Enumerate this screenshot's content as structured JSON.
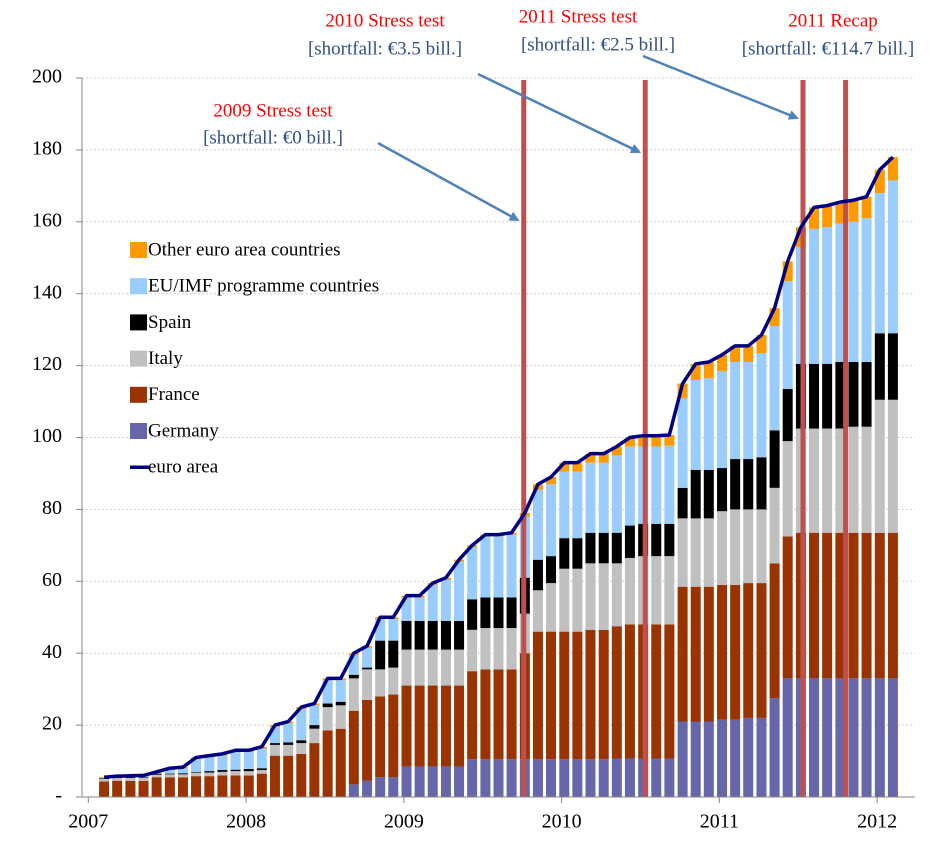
{
  "chart_data": {
    "type": "bar",
    "stacked": true,
    "x": [
      2007.1,
      2007.183,
      2007.267,
      2007.35,
      2007.433,
      2007.517,
      2007.6,
      2007.683,
      2007.767,
      2007.85,
      2007.933,
      2008.017,
      2008.1,
      2008.183,
      2008.267,
      2008.35,
      2008.433,
      2008.517,
      2008.6,
      2008.683,
      2008.767,
      2008.85,
      2008.933,
      2009.017,
      2009.1,
      2009.183,
      2009.267,
      2009.35,
      2009.433,
      2009.517,
      2009.6,
      2009.683,
      2009.767,
      2009.85,
      2009.933,
      2010.017,
      2010.1,
      2010.183,
      2010.267,
      2010.35,
      2010.433,
      2010.517,
      2010.6,
      2010.683,
      2010.767,
      2010.85,
      2010.933,
      2011.017,
      2011.1,
      2011.183,
      2011.267,
      2011.35,
      2011.433,
      2011.517,
      2011.6,
      2011.683,
      2011.767,
      2011.85,
      2011.933,
      2012.017,
      2012.1
    ],
    "series": [
      {
        "name": "Germany",
        "color": "#6667ab",
        "values": [
          0,
          0,
          0,
          0,
          0,
          0,
          0,
          0,
          0,
          0,
          0,
          0,
          0,
          0,
          0,
          0,
          0,
          0,
          0,
          3.5,
          4.5,
          5.5,
          5.5,
          8.5,
          8.5,
          8.5,
          8.5,
          8.5,
          10.5,
          10.5,
          10.5,
          10.5,
          10.5,
          10.5,
          10.5,
          10.5,
          10.5,
          10.5,
          10.5,
          10.7,
          10.7,
          10.7,
          10.7,
          10.7,
          21,
          21,
          21,
          21.5,
          21.5,
          22,
          22,
          27.5,
          33,
          33,
          33,
          33,
          33,
          33,
          33,
          33,
          33
        ]
      },
      {
        "name": "France",
        "color": "#993300",
        "values": [
          4.3,
          4.5,
          4.5,
          4.5,
          5.5,
          5.5,
          5.5,
          5.8,
          5.8,
          6,
          6,
          6,
          6.5,
          11.5,
          11.5,
          12,
          15,
          18.5,
          19,
          20.5,
          22.5,
          22.5,
          23,
          22.5,
          22.5,
          22.5,
          22.5,
          22.5,
          24.5,
          25,
          25,
          25,
          29.5,
          35.5,
          35.5,
          35.5,
          35.5,
          36,
          36,
          36.8,
          37.3,
          37.3,
          37.3,
          37.3,
          37.5,
          37.5,
          37.5,
          37.5,
          37.5,
          37.5,
          37.5,
          37.5,
          39.5,
          40.5,
          40.5,
          40.5,
          40.5,
          40.5,
          40.5,
          40.5,
          40.5
        ]
      },
      {
        "name": "Italy",
        "color": "#c0c0c0",
        "values": [
          0.7,
          0.8,
          0.8,
          0.8,
          0.7,
          0.8,
          0.8,
          1,
          1,
          1,
          1.2,
          1.2,
          1,
          3,
          3,
          3,
          4,
          6.5,
          6.5,
          9,
          8.5,
          7.5,
          7.5,
          10,
          10,
          10,
          10,
          10,
          11.5,
          11.5,
          11.5,
          11.5,
          11,
          11.5,
          13.5,
          17.5,
          17.5,
          18.5,
          18.5,
          17.5,
          18.5,
          19,
          19,
          19,
          19,
          19,
          19,
          20.5,
          21,
          20.5,
          20.5,
          21,
          26.5,
          29,
          29,
          29,
          29,
          29.5,
          29.5,
          37,
          37
        ]
      },
      {
        "name": "Spain",
        "color": "#000000",
        "values": [
          0.2,
          0.2,
          0.2,
          0.2,
          0.3,
          0.2,
          0.3,
          0.2,
          0.4,
          0.5,
          0.4,
          0.6,
          0.5,
          0.5,
          0.7,
          0.8,
          1,
          1,
          1,
          1,
          0.5,
          8,
          7.5,
          8,
          8,
          8,
          8,
          8,
          8.5,
          8.5,
          8.5,
          8.5,
          10,
          8.5,
          7.5,
          8.5,
          8.5,
          8.5,
          8.5,
          8.5,
          9,
          9,
          9,
          9,
          8.5,
          13.5,
          13.5,
          12,
          14,
          14,
          14.5,
          16,
          14.5,
          18,
          18,
          18,
          18.5,
          18,
          18,
          18.5,
          18.5
        ]
      },
      {
        "name": "EU/IMF programme countries",
        "color": "#99ccff",
        "values": [
          0.1,
          0.1,
          0.2,
          0.3,
          0.2,
          1.2,
          1.4,
          3.5,
          3.8,
          4,
          4.9,
          4.7,
          5.5,
          4.5,
          5.3,
          8.7,
          5.5,
          6.5,
          6,
          5.5,
          5.5,
          6,
          6,
          6.5,
          6.5,
          10,
          11.5,
          16.5,
          14.5,
          17,
          17,
          17.5,
          17,
          19.5,
          20,
          18.5,
          18.5,
          19.5,
          19.5,
          21.5,
          22,
          21.5,
          21.5,
          21.7,
          25,
          25,
          25.5,
          27,
          27,
          27,
          29,
          29,
          30,
          32.5,
          37.5,
          38,
          38.5,
          39,
          40,
          39,
          42.5
        ]
      },
      {
        "name": "Other euro area countries",
        "color": "#ff9900",
        "values": [
          0.2,
          0.2,
          0.2,
          0.2,
          0.3,
          0.3,
          0.3,
          0.5,
          0.5,
          0.5,
          0.5,
          0.5,
          0.5,
          0.5,
          0.5,
          0.5,
          0.5,
          0.5,
          0.5,
          0.5,
          0.5,
          0.5,
          0.5,
          0.5,
          0.5,
          0.5,
          0.5,
          0.5,
          0.5,
          0.5,
          0.5,
          0.5,
          1,
          1.5,
          2,
          2.5,
          2.5,
          2.5,
          2.5,
          2.5,
          2.5,
          3,
          3,
          3,
          4,
          4.5,
          4.5,
          4.5,
          4.5,
          4.5,
          5,
          5,
          5.5,
          5.5,
          6,
          6,
          6,
          6,
          6,
          6.5,
          6.5
        ]
      },
      {
        "name": "euro area",
        "type": "line",
        "color": "#000080",
        "values": [
          5.5,
          5.8,
          5.9,
          6,
          7,
          8,
          8.3,
          11,
          11.5,
          12,
          13,
          13,
          14,
          20,
          21,
          25,
          26,
          33,
          33,
          40,
          42,
          50,
          50,
          56,
          56,
          59.5,
          61,
          66,
          70,
          73,
          73,
          73.5,
          79,
          87,
          89,
          93,
          93,
          95.5,
          95.5,
          97.5,
          100,
          100.5,
          100.5,
          100.7,
          115,
          120.5,
          121,
          123,
          125.5,
          125.5,
          128.5,
          136,
          149,
          158.5,
          164,
          164.5,
          165.5,
          166,
          167,
          174.5,
          178
        ]
      }
    ],
    "xlim": [
      2006.96,
      2012.24
    ],
    "xticks": [
      2007,
      2008,
      2009,
      2010,
      2011,
      2012
    ],
    "ylim": [
      0,
      200
    ],
    "yticks": [
      {
        "value": 0,
        "label": "-"
      },
      20,
      40,
      60,
      80,
      100,
      120,
      140,
      160,
      180,
      200
    ],
    "grid": true,
    "legend": "left",
    "events": [
      2009.76,
      2010.53,
      2011.53,
      2011.8
    ],
    "event_color": "#c0504d",
    "annotations": [
      {
        "title": "2009 Stress test",
        "text": "[shortfall: €0 bill.]"
      },
      {
        "title": "2010 Stress test",
        "text": "[shortfall: €3.5 bill.]"
      },
      {
        "title": "2011 Stress test",
        "text": "[shortfall: €2.5 bill.]"
      },
      {
        "title": "2011 Recap",
        "text": "[shortfall: €114.7 bill.]"
      }
    ]
  }
}
